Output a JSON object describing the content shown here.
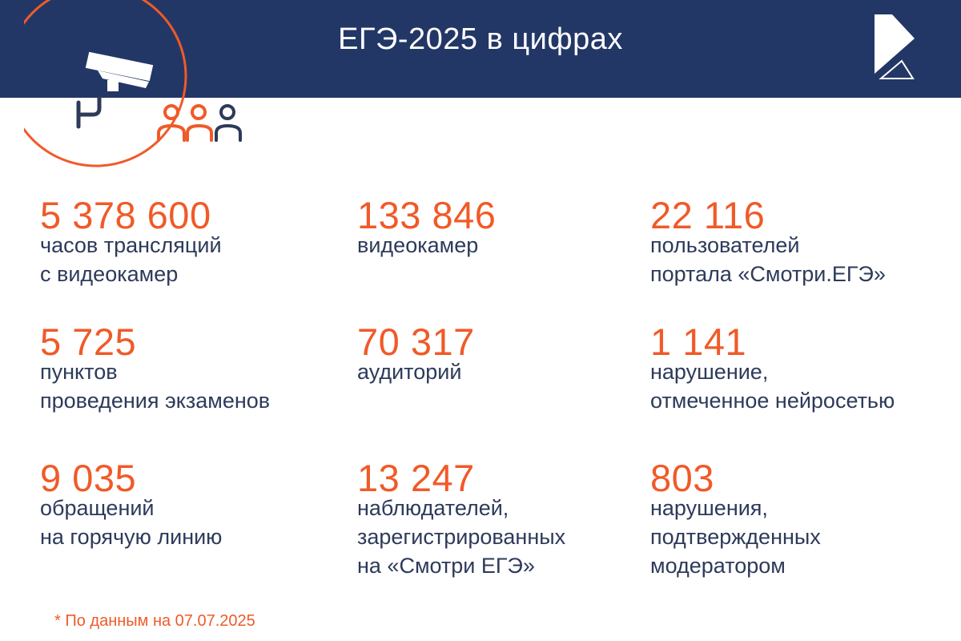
{
  "header": {
    "title": "ЕГЭ-2025 в цифрах",
    "background_color": "#233766"
  },
  "emblem": {
    "icons": [
      "surveillance-camera-icon",
      "people-icon"
    ],
    "accent_color": "#f05a28"
  },
  "logo": {
    "icon": "rostelecom-logo-icon"
  },
  "stats": [
    {
      "number": "5 378 600",
      "lines": [
        "часов трансляций",
        "с видеокамер"
      ]
    },
    {
      "number": "133 846",
      "lines": [
        "видеокамер"
      ]
    },
    {
      "number": "22 116",
      "lines": [
        "пользователей",
        "портала «Смотри.ЕГЭ»"
      ]
    },
    {
      "number": "5 725",
      "lines": [
        "пунктов",
        "проведения экзаменов"
      ]
    },
    {
      "number": "70 317",
      "lines": [
        "аудиторий"
      ]
    },
    {
      "number": "1 141",
      "lines": [
        "нарушение,",
        "отмеченное нейросетью"
      ]
    },
    {
      "number": "9 035",
      "lines": [
        "обращений",
        "на горячую линию"
      ]
    },
    {
      "number": "13 247",
      "lines": [
        "наблюдателей,",
        "зарегистрированных",
        "на «Смотри ЕГЭ»"
      ]
    },
    {
      "number": "803",
      "lines": [
        "нарушения,",
        "подтвержденных",
        "модератором"
      ]
    }
  ],
  "footnote": "* По данным на 07.07.2025",
  "colors": {
    "number": "#f05a28",
    "text": "#2d3a5a"
  }
}
